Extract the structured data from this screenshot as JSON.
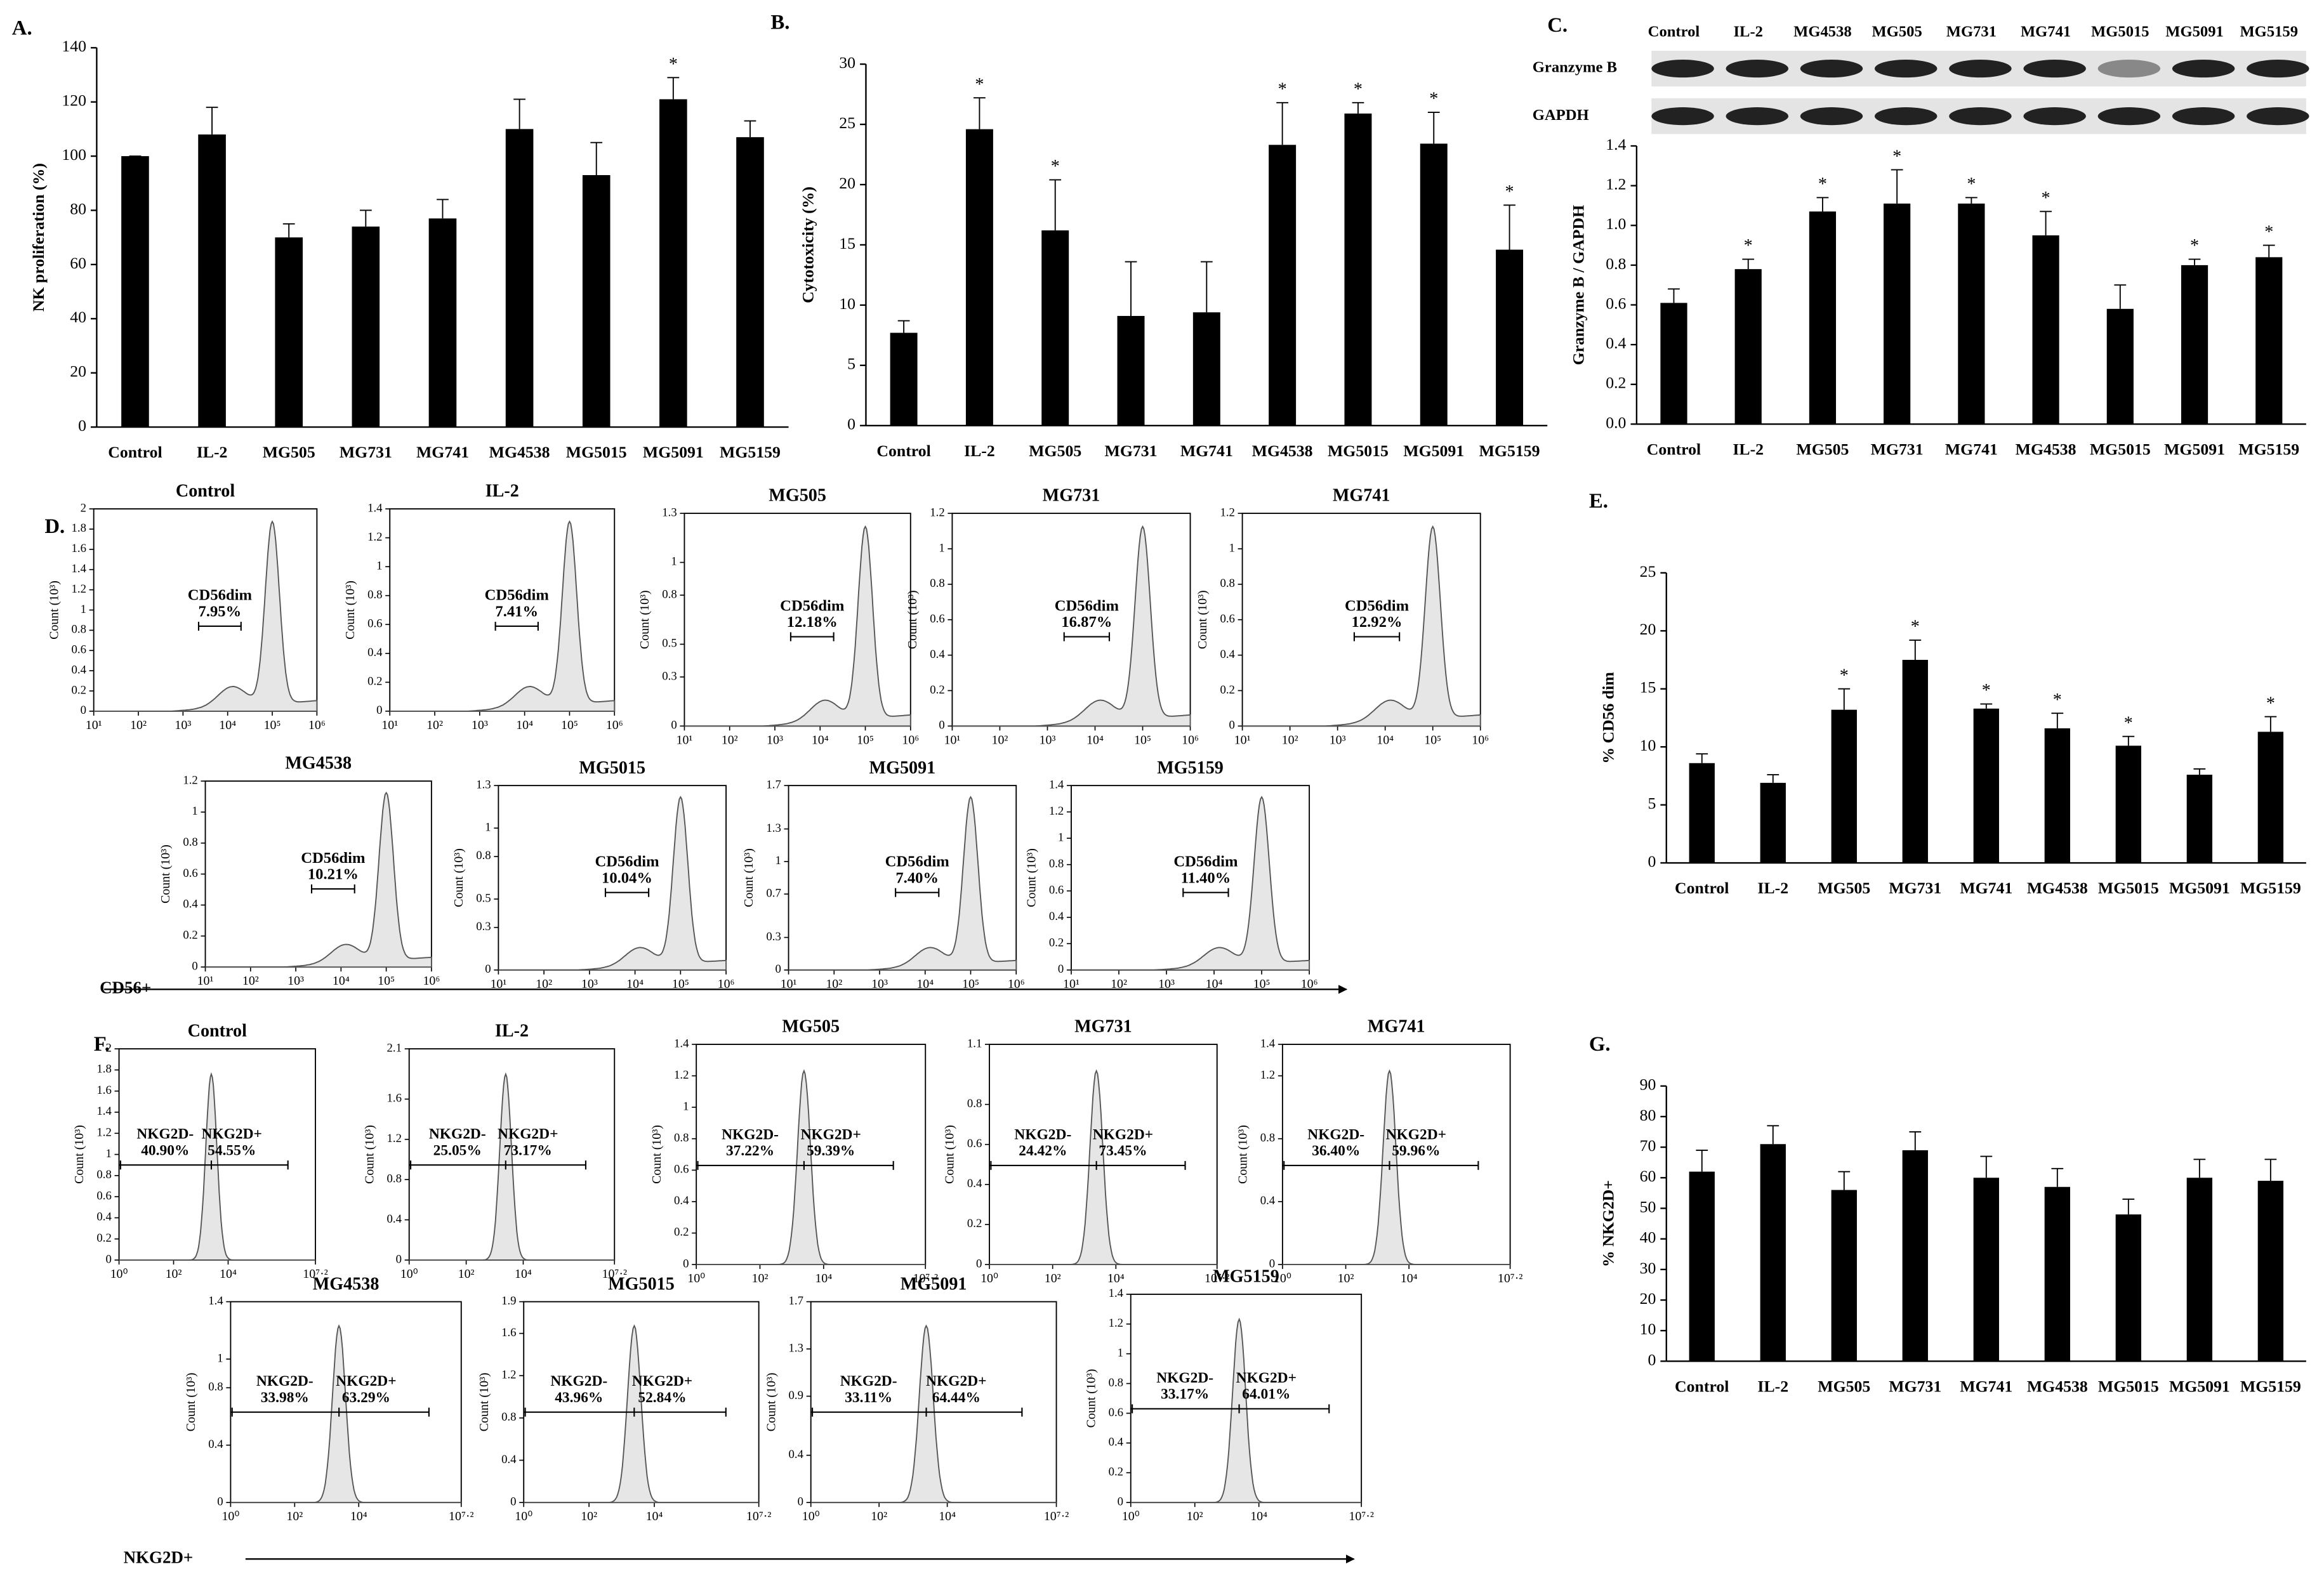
{
  "chart_data": [
    {
      "type": "bar",
      "label": "A.",
      "ylabel": "NK proliferation (%)",
      "color": "#000000",
      "categories": [
        "Control",
        "IL-2",
        "MG505",
        "MG731",
        "MG741",
        "MG4538",
        "MG5015",
        "MG5091",
        "MG5159"
      ],
      "values": [
        100,
        108,
        70,
        74,
        77,
        110,
        93,
        121,
        107
      ],
      "errors": [
        0,
        10,
        5,
        6,
        7,
        11,
        12,
        8,
        6
      ],
      "significance": [
        null,
        null,
        null,
        null,
        null,
        null,
        null,
        "*",
        null
      ],
      "ylim": [
        0,
        140
      ],
      "yticks": [
        0,
        20,
        40,
        60,
        80,
        100,
        120,
        140
      ]
    },
    {
      "type": "bar",
      "label": "B.",
      "ylabel": "Cytotoxicity (%)",
      "color": "#000000",
      "categories": [
        "Control",
        "IL-2",
        "MG505",
        "MG731",
        "MG741",
        "MG4538",
        "MG5015",
        "MG5091",
        "MG5159"
      ],
      "values": [
        7.7,
        24.6,
        16.2,
        9.1,
        9.4,
        23.3,
        25.9,
        23.4,
        14.6
      ],
      "errors": [
        1,
        2.6,
        4.2,
        4.5,
        4.2,
        3.5,
        0.9,
        2.6,
        3.7
      ],
      "significance": [
        null,
        "*",
        "*",
        null,
        null,
        "*",
        "*",
        "*",
        "*"
      ],
      "ylim": [
        0,
        30
      ],
      "yticks": [
        0,
        5,
        10,
        15,
        20,
        25,
        30
      ]
    },
    {
      "type": "bar",
      "label": "C.",
      "ylabel": "Granzyme B / GAPDH",
      "color": "#000000",
      "blot": {
        "lanes": [
          "Control",
          "IL-2",
          "MG4538",
          "MG505",
          "MG731",
          "MG741",
          "MG5015",
          "MG5091",
          "MG5159"
        ],
        "rows": [
          "Granzyme B",
          "GAPDH"
        ]
      },
      "categories": [
        "Control",
        "IL-2",
        "MG505",
        "MG731",
        "MG741",
        "MG4538",
        "MG5015",
        "MG5091",
        "MG5159"
      ],
      "values": [
        0.61,
        0.78,
        1.07,
        1.11,
        1.11,
        0.95,
        0.58,
        0.8,
        0.84
      ],
      "errors": [
        0.07,
        0.05,
        0.07,
        0.17,
        0.03,
        0.12,
        0.12,
        0.03,
        0.06
      ],
      "significance": [
        null,
        "*",
        "*",
        "*",
        "*",
        "*",
        null,
        "*",
        "*"
      ],
      "ylim": [
        0,
        1.4
      ],
      "yticks": [
        {
          "value": 0,
          "label": "0.0"
        },
        0.2,
        0.4,
        0.6,
        0.8,
        {
          "value": 1,
          "label": "1.0"
        },
        1.2,
        1.4
      ]
    },
    {
      "type": "flow",
      "label": "D.",
      "xlabel": "CD56+",
      "ylabel": "Count (10³)",
      "xscale": "log",
      "xlim": [
        10,
        1000000
      ],
      "xticks": [
        {
          "value": 10,
          "label": "10¹"
        },
        {
          "value": 100,
          "label": "10²"
        },
        {
          "value": 1000,
          "label": "10³"
        },
        {
          "value": 10000,
          "label": "10⁴"
        },
        {
          "value": 100000,
          "label": "10⁵"
        },
        {
          "value": 1000000,
          "label": "10⁶"
        }
      ],
      "panels": [
        {
          "title": "Control",
          "ylim": [
            0,
            2
          ],
          "yticks": [
            0,
            0.2,
            0.4,
            0.6,
            0.8,
            1,
            1.2,
            1.4,
            1.6,
            1.8,
            2
          ],
          "gates": [
            {
              "name": "CD56dim",
              "percent": "7.95%"
            }
          ]
        },
        {
          "title": "IL-2",
          "ylim": [
            0,
            1.4
          ],
          "yticks": [
            0,
            0.2,
            0.4,
            0.6,
            0.8,
            1,
            1.2,
            1.4
          ],
          "gates": [
            {
              "name": "CD56dim",
              "percent": "7.41%"
            }
          ]
        },
        {
          "title": "MG505",
          "ylim": [
            0,
            1.3
          ],
          "yticks": [
            0,
            0.3,
            0.5,
            0.8,
            1,
            1.3
          ],
          "gates": [
            {
              "name": "CD56dim",
              "percent": "12.18%"
            }
          ]
        },
        {
          "title": "MG731",
          "ylim": [
            0,
            1.2
          ],
          "yticks": [
            0,
            0.2,
            0.4,
            0.6,
            0.8,
            1,
            1.2
          ],
          "gates": [
            {
              "name": "CD56dim",
              "percent": "16.87%"
            }
          ]
        },
        {
          "title": "MG741",
          "ylim": [
            0,
            1.2
          ],
          "yticks": [
            0,
            0.2,
            0.4,
            0.6,
            0.8,
            1,
            1.2
          ],
          "gates": [
            {
              "name": "CD56dim",
              "percent": "12.92%"
            }
          ]
        },
        {
          "title": "MG4538",
          "ylim": [
            0,
            1.2
          ],
          "yticks": [
            0,
            0.2,
            0.4,
            0.6,
            0.8,
            1,
            1.2
          ],
          "gates": [
            {
              "name": "CD56dim",
              "percent": "10.21%"
            }
          ]
        },
        {
          "title": "MG5015",
          "ylim": [
            0,
            1.3
          ],
          "yticks": [
            0,
            0.3,
            0.5,
            0.8,
            1,
            1.3
          ],
          "gates": [
            {
              "name": "CD56dim",
              "percent": "10.04%"
            }
          ]
        },
        {
          "title": "MG5091",
          "ylim": [
            0,
            1.7
          ],
          "yticks": [
            0,
            0.3,
            0.7,
            1,
            1.3,
            1.7
          ],
          "gates": [
            {
              "name": "CD56dim",
              "percent": "7.40%"
            }
          ]
        },
        {
          "title": "MG5159",
          "ylim": [
            0,
            1.4
          ],
          "yticks": [
            0,
            0.2,
            0.4,
            0.6,
            0.8,
            1,
            1.2,
            1.4
          ],
          "gates": [
            {
              "name": "CD56dim",
              "percent": "11.40%"
            }
          ]
        }
      ]
    },
    {
      "type": "bar",
      "label": "E.",
      "ylabel": "% CD56 dim",
      "color": "#000000",
      "categories": [
        "Control",
        "IL-2",
        "MG505",
        "MG731",
        "MG741",
        "MG4538",
        "MG5015",
        "MG5091",
        "MG5159"
      ],
      "values": [
        8.6,
        6.9,
        13.2,
        17.5,
        13.3,
        11.6,
        10.1,
        7.6,
        11.3
      ],
      "errors": [
        0.8,
        0.7,
        1.8,
        1.7,
        0.4,
        1.3,
        0.8,
        0.5,
        1.3
      ],
      "significance": [
        null,
        null,
        "*",
        "*",
        "*",
        "*",
        "*",
        null,
        "*"
      ],
      "ylim": [
        0,
        25
      ],
      "yticks": [
        0,
        5,
        10,
        15,
        20,
        25
      ]
    },
    {
      "type": "flow",
      "label": "F.",
      "xlabel": "NKG2D+",
      "ylabel": "Count (10³)",
      "xscale": "log",
      "xlim": [
        1,
        15848931.92
      ],
      "xticks": [
        {
          "value": 1,
          "label": "10⁰"
        },
        {
          "value": 100,
          "label": "10²"
        },
        {
          "value": 10000,
          "label": "10⁴"
        },
        {
          "value": 15848931.92,
          "label": "10⁷·²"
        }
      ],
      "panels": [
        {
          "title": "Control",
          "ylim": [
            0,
            2
          ],
          "yticks": [
            0,
            0.2,
            0.4,
            0.6,
            0.8,
            1,
            1.2,
            1.4,
            1.6,
            1.8,
            2
          ],
          "gates": [
            {
              "name": "NKG2D-",
              "percent": "40.90%"
            },
            {
              "name": "NKG2D+",
              "percent": "54.55%"
            }
          ]
        },
        {
          "title": "IL-2",
          "ylim": [
            0,
            2.1
          ],
          "yticks": [
            0,
            0.4,
            0.8,
            1.2,
            1.6,
            2.1
          ],
          "gates": [
            {
              "name": "NKG2D-",
              "percent": "25.05%"
            },
            {
              "name": "NKG2D+",
              "percent": "73.17%"
            }
          ]
        },
        {
          "title": "MG505",
          "ylim": [
            0,
            1.4
          ],
          "yticks": [
            0,
            0.2,
            0.4,
            0.6,
            0.8,
            1,
            1.2,
            1.4
          ],
          "gates": [
            {
              "name": "NKG2D-",
              "percent": "37.22%"
            },
            {
              "name": "NKG2D+",
              "percent": "59.39%"
            }
          ]
        },
        {
          "title": "MG731",
          "ylim": [
            0,
            1.1
          ],
          "yticks": [
            0,
            0.2,
            0.4,
            0.6,
            0.8,
            1.1
          ],
          "gates": [
            {
              "name": "NKG2D-",
              "percent": "24.42%"
            },
            {
              "name": "NKG2D+",
              "percent": "73.45%"
            }
          ]
        },
        {
          "title": "MG741",
          "ylim": [
            0,
            1.4
          ],
          "yticks": [
            0,
            0.4,
            0.8,
            1.2,
            1.4
          ],
          "gates": [
            {
              "name": "NKG2D-",
              "percent": "36.40%"
            },
            {
              "name": "NKG2D+",
              "percent": "59.96%"
            }
          ]
        },
        {
          "title": "MG4538",
          "ylim": [
            0,
            1.4
          ],
          "yticks": [
            0,
            0.4,
            0.8,
            1,
            1.4
          ],
          "gates": [
            {
              "name": "NKG2D-",
              "percent": "33.98%"
            },
            {
              "name": "NKG2D+",
              "percent": "63.29%"
            }
          ]
        },
        {
          "title": "MG5015",
          "ylim": [
            0,
            1.9
          ],
          "yticks": [
            0,
            0.4,
            0.8,
            1.2,
            1.6,
            1.9
          ],
          "gates": [
            {
              "name": "NKG2D-",
              "percent": "43.96%"
            },
            {
              "name": "NKG2D+",
              "percent": "52.84%"
            }
          ]
        },
        {
          "title": "MG5091",
          "ylim": [
            0,
            1.7
          ],
          "yticks": [
            0,
            0.4,
            0.9,
            1.3,
            1.7
          ],
          "gates": [
            {
              "name": "NKG2D-",
              "percent": "33.11%"
            },
            {
              "name": "NKG2D+",
              "percent": "64.44%"
            }
          ]
        },
        {
          "title": "MG5159",
          "ylim": [
            0,
            1.4
          ],
          "yticks": [
            0,
            0.2,
            0.4,
            0.6,
            0.8,
            1,
            1.2,
            1.4
          ],
          "gates": [
            {
              "name": "NKG2D-",
              "percent": "33.17%"
            },
            {
              "name": "NKG2D+",
              "percent": "64.01%"
            }
          ]
        }
      ]
    },
    {
      "type": "bar",
      "label": "G.",
      "ylabel": "% NKG2D+",
      "color": "#000000",
      "categories": [
        "Control",
        "IL-2",
        "MG505",
        "MG731",
        "MG741",
        "MG4538",
        "MG5015",
        "MG5091",
        "MG5159"
      ],
      "values": [
        62,
        71,
        56,
        69,
        60,
        57,
        48,
        60,
        59
      ],
      "errors": [
        7,
        6,
        6,
        6,
        7,
        6,
        5,
        6,
        7
      ],
      "significance": [
        null,
        null,
        null,
        null,
        null,
        null,
        null,
        null,
        null
      ],
      "ylim": [
        0,
        90
      ],
      "yticks": [
        0,
        10,
        20,
        30,
        40,
        50,
        60,
        70,
        80,
        90
      ]
    }
  ]
}
